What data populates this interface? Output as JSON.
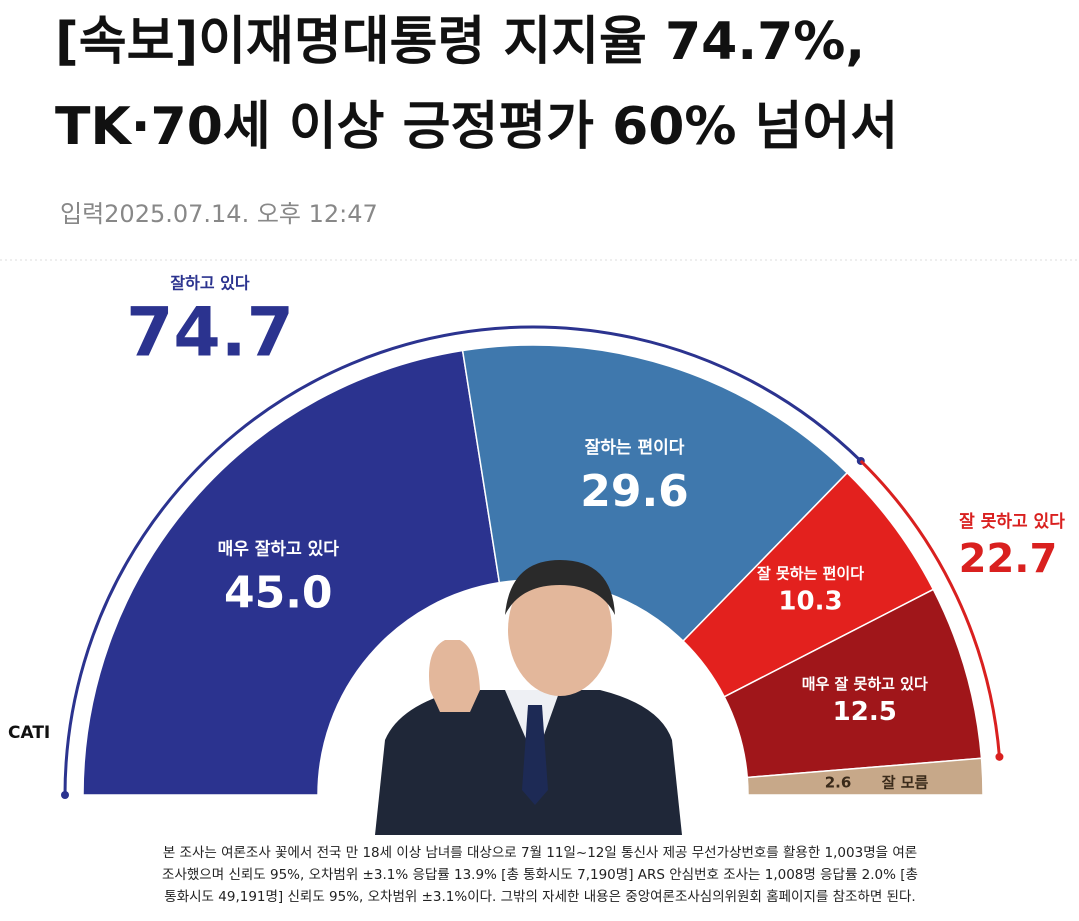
{
  "header": {
    "title_lines": [
      "[속보]이재명대통령 지지율 74.7%,",
      "TK·70세 이상 긍정평가 60% 넘어서"
    ],
    "date": "입력2025.07.14. 오후 12:47"
  },
  "chart_data": {
    "type": "semicircle",
    "categories": [
      "매우 잘하고 있다",
      "잘하는 편이다",
      "잘 못하는 편이다",
      "매우 잘 못하고 있다",
      "잘 모름"
    ],
    "values": [
      45,
      29.6,
      10.3,
      12.5,
      2.6
    ],
    "value_labels": [
      "45.0",
      "29.6",
      "10.3",
      "12.5",
      "2.6"
    ],
    "colors": [
      "#2b338f",
      "#3f78ad",
      "#e3211e",
      "#a0161a",
      "#c7a889"
    ],
    "groups": [
      {
        "name": "잘하고 있다",
        "value": 74.7,
        "color": "#2b338f"
      },
      {
        "name": "잘 못하고 있다",
        "value": 22.7,
        "color": "#d9201f"
      }
    ],
    "method": "CATI"
  },
  "footnote": [
    "본 조사는 여론조사 꽃에서 전국 만 18세 이상 남녀를 대상으로 7월 11일~12일 통신사 제공 무선가상번호를 활용한 1,003명을 여론",
    "조사했으며 신뢰도 95%, 오차범위 ±3.1% 응답률 13.9% [총 통화시도 7,190명] ARS 안심번호 조사는 1,008명 응답률 2.0% [총",
    "통화시도 49,191명] 신뢰도 95%, 오차범위 ±3.1%이다. 그밖의 자세한 내용은 중앙여론조사심의위원회 홈페이지를 참조하면 된다."
  ]
}
